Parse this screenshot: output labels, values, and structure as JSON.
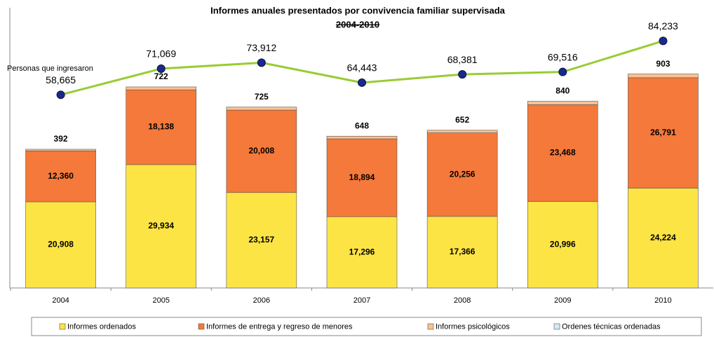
{
  "chart_data": {
    "type": "stacked-bar-line",
    "title": "Informes anuales presentados por convivencia familiar supervisada",
    "subtitle": "2004-2010",
    "categories": [
      "2004",
      "2005",
      "2006",
      "2007",
      "2008",
      "2009",
      "2010"
    ],
    "ylim": [
      0,
      68000
    ],
    "y2lim": [
      -33000,
      100000
    ],
    "series": [
      {
        "name": "Informes ordenados",
        "color": "#fde445",
        "values": [
          20908,
          29934,
          23157,
          17296,
          17366,
          20996,
          24224
        ],
        "value_labels": [
          "20,908",
          "29,934",
          "23,157",
          "17,296",
          "17,366",
          "20,996",
          "24,224"
        ]
      },
      {
        "name": "Informes de entrega y regreso de menores",
        "color": "#f4793a",
        "values": [
          12360,
          18138,
          20008,
          18894,
          20256,
          23468,
          26791
        ],
        "value_labels": [
          "12,360",
          "18,138",
          "20,008",
          "18,894",
          "20,256",
          "23,468",
          "26,791"
        ]
      },
      {
        "name": "Informes psicológicos",
        "color": "#f9c190",
        "values": [
          392,
          722,
          725,
          648,
          652,
          840,
          903
        ]
      },
      {
        "name": "Ordenes técnicas ordenadas",
        "color": "#d4ecee",
        "values": [
          null,
          null,
          null,
          null,
          null,
          null,
          null
        ]
      },
      {
        "name": "Personas que ingresaron",
        "color": "#99cc33",
        "marker_color": "#1a2a8c",
        "axis": "y2",
        "values": [
          58665,
          71069,
          73912,
          64443,
          68381,
          69516,
          84233
        ],
        "value_labels": [
          "58,665",
          "71,069",
          "73,912",
          "64,443",
          "68,381",
          "69,516",
          "84,233"
        ]
      }
    ]
  }
}
